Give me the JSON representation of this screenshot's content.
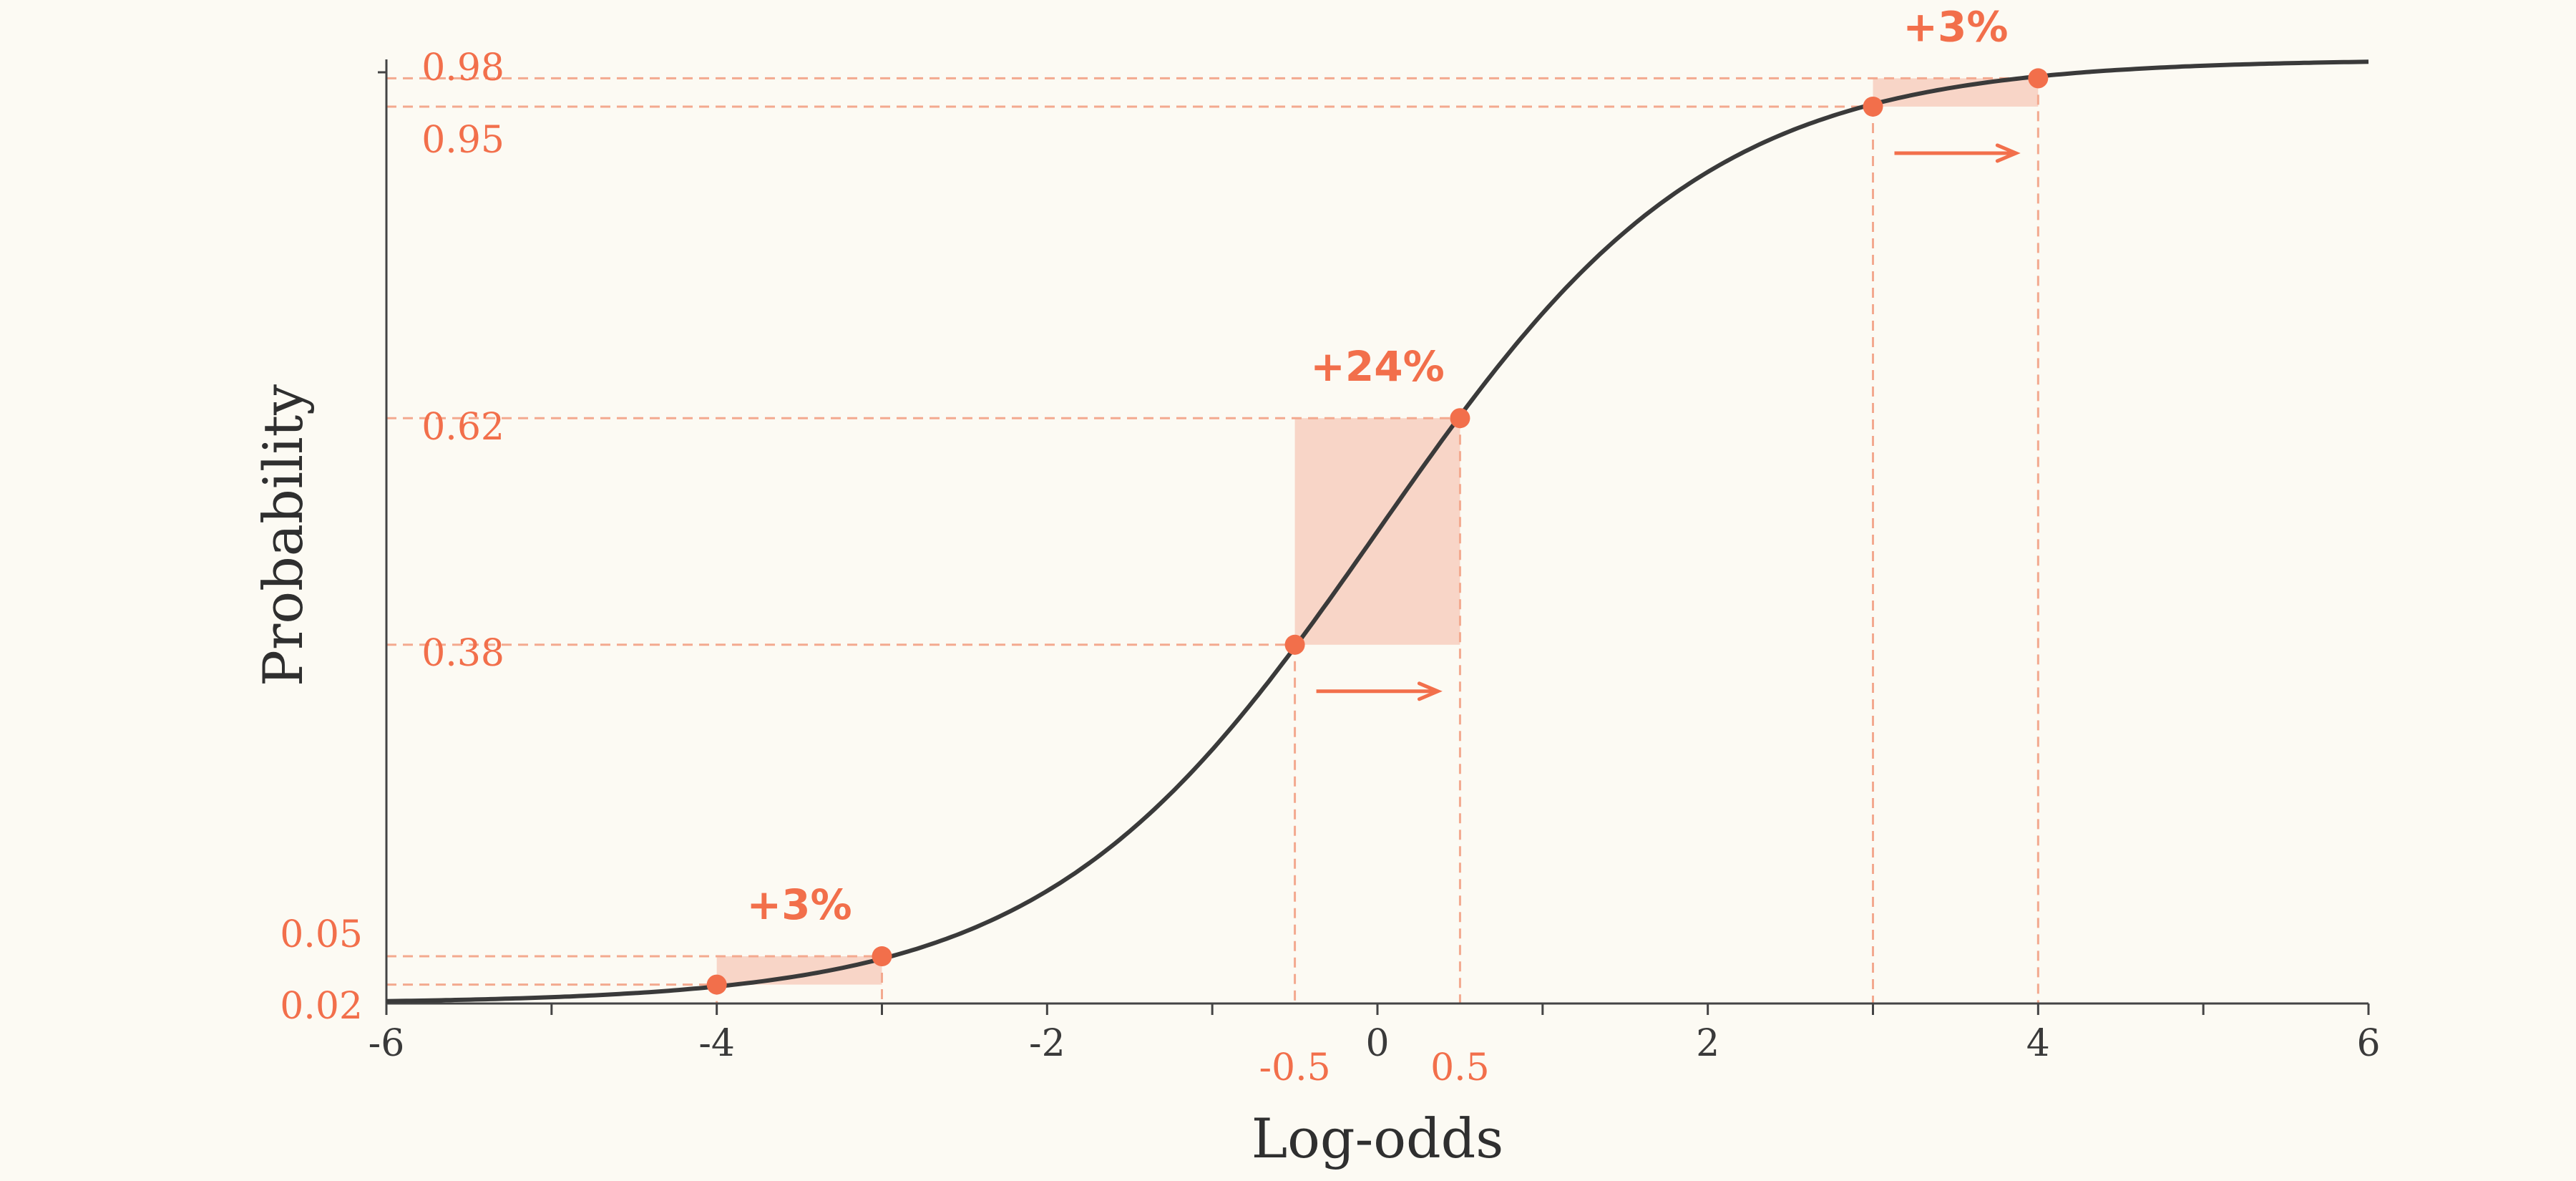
{
  "colors": {
    "background": "#fcfaf3",
    "curve": "#3a3a3a",
    "axis": "#444444",
    "accent": "#f26f4b",
    "accent_dash": "#f3a98f",
    "band_fill": "#f8d5c7"
  },
  "chart_data": {
    "type": "line",
    "function": "logistic",
    "xlabel": "Log-odds",
    "ylabel": "Probability",
    "xlim": [
      -6,
      6
    ],
    "ylim": [
      0,
      1
    ],
    "x_ticks": [
      -6,
      -5,
      -4,
      -3,
      -2,
      -1,
      0,
      1,
      2,
      3,
      4,
      5,
      6
    ],
    "x_tick_labels": [
      {
        "value": -6,
        "label": "-6"
      },
      {
        "value": -4,
        "label": "-4"
      },
      {
        "value": -2,
        "label": "-2"
      },
      {
        "value": 0,
        "label": "0"
      },
      {
        "value": 2,
        "label": "2"
      },
      {
        "value": 4,
        "label": "4"
      },
      {
        "value": 6,
        "label": "6"
      }
    ],
    "extra_x_labels": [
      {
        "value": -0.5,
        "label": "-0.5"
      },
      {
        "value": 0.5,
        "label": "0.5"
      }
    ],
    "y_markers": [
      {
        "value": 0.02,
        "label": "0.02"
      },
      {
        "value": 0.05,
        "label": "0.05"
      },
      {
        "value": 0.38,
        "label": "0.38"
      },
      {
        "value": 0.62,
        "label": "0.62"
      },
      {
        "value": 0.95,
        "label": "0.95"
      },
      {
        "value": 0.98,
        "label": "0.98"
      }
    ],
    "intervals": [
      {
        "x0": -4,
        "x1": -3,
        "y0": 0.02,
        "y1": 0.05,
        "delta_label": "+3%"
      },
      {
        "x0": -0.5,
        "x1": 0.5,
        "y0": 0.38,
        "y1": 0.62,
        "delta_label": "+24%"
      },
      {
        "x0": 3,
        "x1": 4,
        "y0": 0.95,
        "y1": 0.98,
        "delta_label": "+3%"
      }
    ],
    "grid": false,
    "legend": "none"
  }
}
